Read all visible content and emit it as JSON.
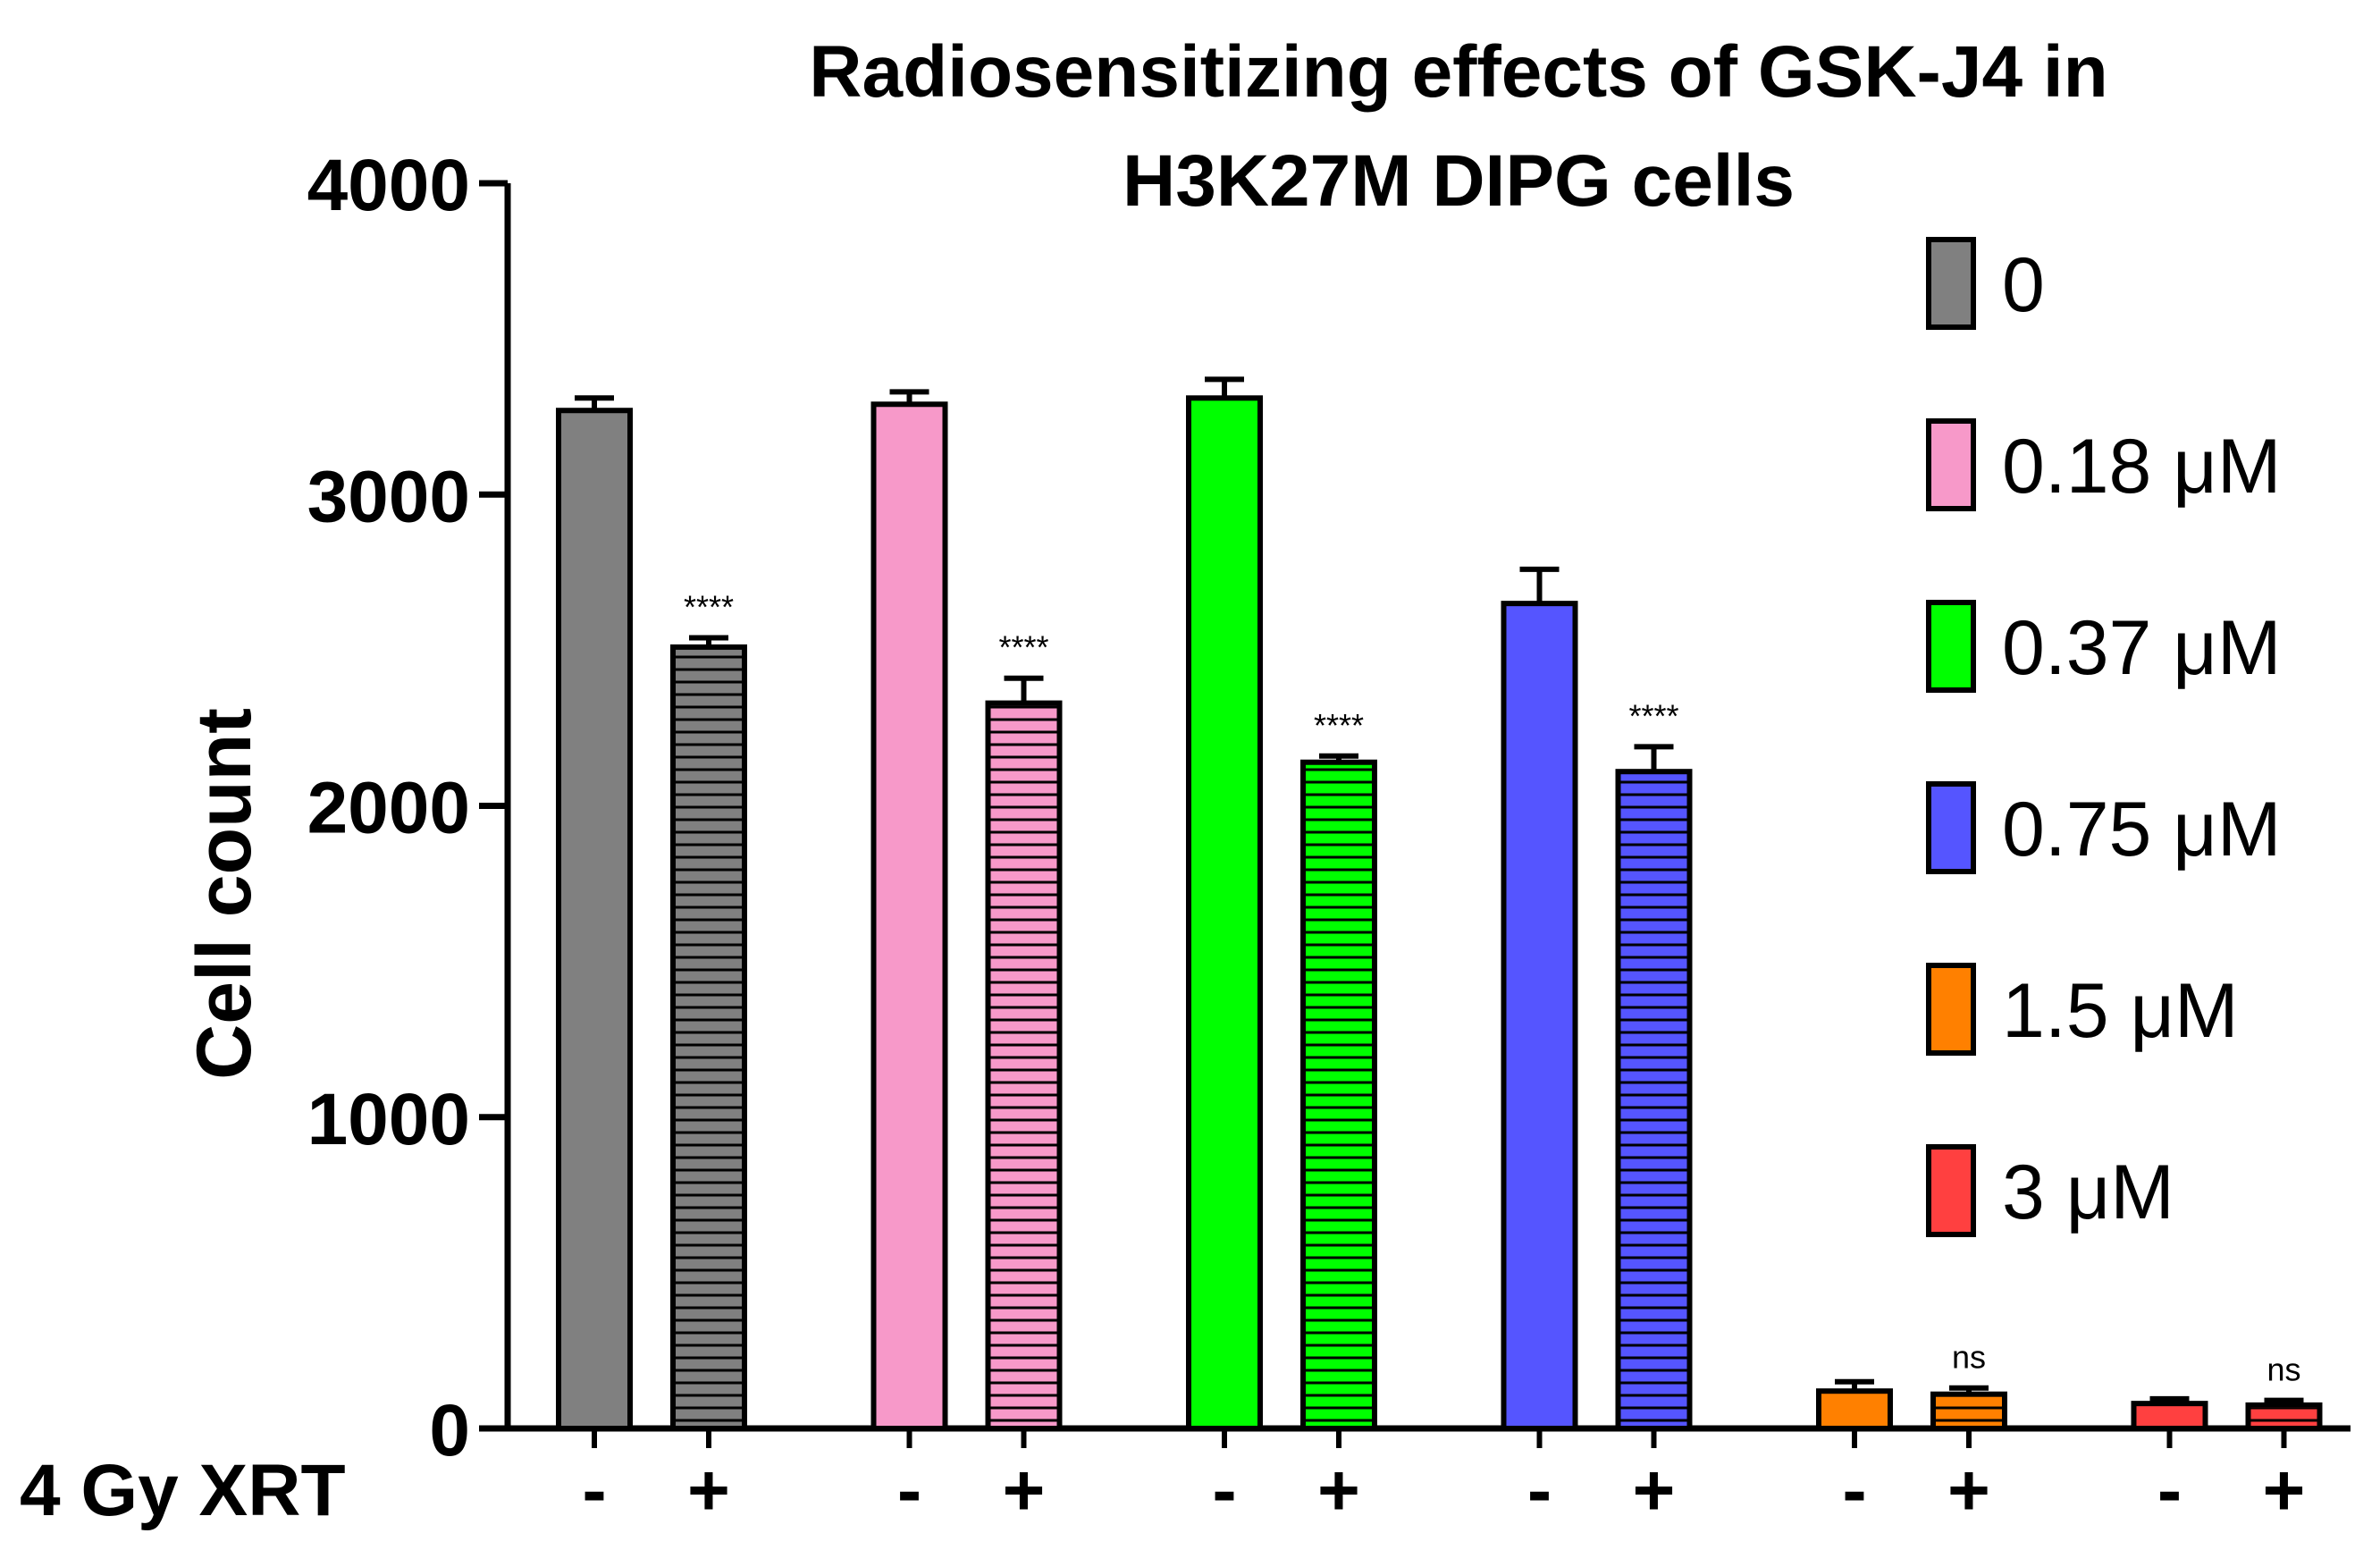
{
  "chart_data": {
    "type": "bar",
    "title_lines": [
      "Radiosensitizing effects of GSK-J4 in",
      "H3K27M DIPG cells"
    ],
    "ylabel": "Cell count",
    "xlabel": "4 Gy XRT",
    "ylim": [
      0,
      4000
    ],
    "yticks": [
      0,
      1000,
      2000,
      3000,
      4000
    ],
    "ytick_labels": [
      "0",
      "1000",
      "2000",
      "3000",
      "4000"
    ],
    "categories": [
      "-",
      "+"
    ],
    "bar_pattern": {
      "-": "solid",
      "+": "horizontal-stripes"
    },
    "groups": [
      {
        "name": "0",
        "color": "#808080",
        "values": [
          3270,
          2510
        ],
        "errors": [
          40,
          30
        ],
        "sig_labels": [
          "",
          "****"
        ]
      },
      {
        "name": "0.18 μM",
        "color": "#f799c9",
        "values": [
          3290,
          2330
        ],
        "errors": [
          40,
          80
        ],
        "sig_labels": [
          "",
          "****"
        ]
      },
      {
        "name": "0.37 μM",
        "color": "#00ff00",
        "values": [
          3310,
          2140
        ],
        "errors": [
          60,
          20
        ],
        "sig_labels": [
          "",
          "****"
        ]
      },
      {
        "name": "0.75 μM",
        "color": "#5555ff",
        "values": [
          2650,
          2110
        ],
        "errors": [
          110,
          80
        ],
        "sig_labels": [
          "",
          "****"
        ]
      },
      {
        "name": "1.5 μM",
        "color": "#ff8000",
        "values": [
          120,
          110
        ],
        "errors": [
          30,
          20
        ],
        "sig_labels": [
          "",
          "ns"
        ]
      },
      {
        "name": "3 μM",
        "color": "#ff4040",
        "values": [
          80,
          75
        ],
        "errors": [
          15,
          15
        ],
        "sig_labels": [
          "",
          "ns"
        ]
      }
    ]
  }
}
